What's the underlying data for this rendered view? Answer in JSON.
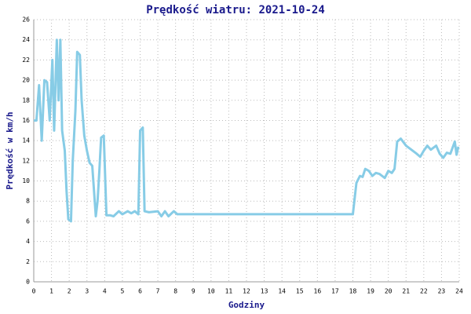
{
  "chart_data": {
    "type": "line",
    "title": "Prędkość wiatru: 2021-10-24",
    "xlabel": "Godziny",
    "ylabel": "Prędkość w km/h",
    "color": "#87cce6",
    "grid": true,
    "xlim": [
      0,
      24
    ],
    "ylim": [
      0,
      26
    ],
    "xticks": [
      0,
      1,
      2,
      3,
      4,
      5,
      6,
      7,
      8,
      9,
      10,
      11,
      12,
      13,
      14,
      15,
      16,
      17,
      18,
      19,
      20,
      21,
      22,
      23,
      24
    ],
    "yticks": [
      0,
      2,
      4,
      6,
      8,
      10,
      12,
      14,
      16,
      18,
      20,
      22,
      24,
      26
    ],
    "x": [
      0,
      0.15,
      0.3,
      0.45,
      0.6,
      0.75,
      0.9,
      1.05,
      1.15,
      1.3,
      1.4,
      1.5,
      1.6,
      1.75,
      1.85,
      1.95,
      2.1,
      2.2,
      2.35,
      2.45,
      2.6,
      2.7,
      2.85,
      3.0,
      3.15,
      3.3,
      3.4,
      3.5,
      3.6,
      3.7,
      3.8,
      3.95,
      4.1,
      4.3,
      4.5,
      4.8,
      5.0,
      5.3,
      5.5,
      5.7,
      5.9,
      6.0,
      6.15,
      6.25,
      6.5,
      7.0,
      7.2,
      7.4,
      7.6,
      7.9,
      8.1,
      18.0,
      18.2,
      18.4,
      18.55,
      18.7,
      18.9,
      19.1,
      19.3,
      19.5,
      19.8,
      20.0,
      20.2,
      20.35,
      20.5,
      20.7,
      21.0,
      21.3,
      21.6,
      21.8,
      22.0,
      22.2,
      22.4,
      22.7,
      22.9,
      23.1,
      23.3,
      23.5,
      23.75,
      23.85,
      23.95
    ],
    "values": [
      16,
      16,
      19.5,
      14,
      20,
      19.8,
      16,
      22,
      15,
      24,
      18,
      24,
      15,
      13,
      9,
      6.2,
      6,
      12,
      17,
      22.8,
      22.5,
      18,
      14.5,
      13,
      11.8,
      11.5,
      9,
      6.5,
      8,
      11,
      14.3,
      14.5,
      6.6,
      6.6,
      6.5,
      7,
      6.7,
      7,
      6.8,
      7,
      6.7,
      15,
      15.3,
      7,
      6.9,
      7,
      6.5,
      7,
      6.5,
      7,
      6.7,
      6.7,
      9.8,
      10.5,
      10.4,
      11.2,
      11,
      10.5,
      10.8,
      10.7,
      10.3,
      11,
      10.8,
      11.2,
      13.9,
      14.2,
      13.5,
      13.1,
      12.7,
      12.4,
      13,
      13.5,
      13.1,
      13.5,
      12.7,
      12.3,
      12.8,
      12.7,
      13.9,
      12.6,
      13.4
    ]
  }
}
